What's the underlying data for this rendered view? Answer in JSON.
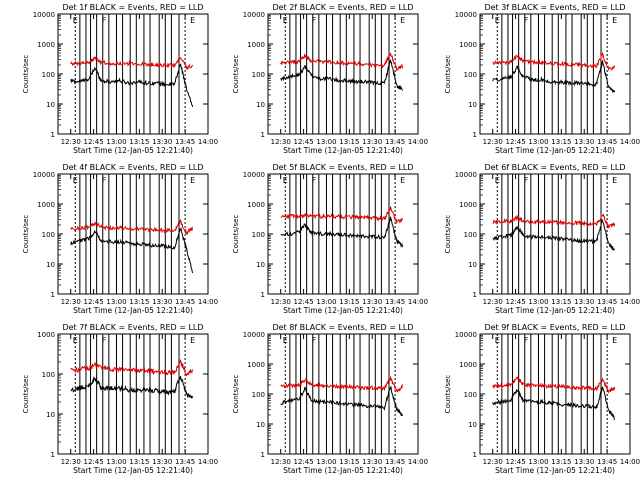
{
  "colors": {
    "events": "#000000",
    "lld": "#e00000",
    "frame": "#000000",
    "marker": "#000000"
  },
  "shared": {
    "ylabel": "Counts/sec",
    "xlabel": "Start Time (12-Jan-05 12:21:40)",
    "x_ticks": [
      "12:30",
      "12:45",
      "13:00",
      "13:15",
      "13:30",
      "13:45",
      "14:00"
    ],
    "y_ticks": [
      "1",
      "10",
      "100",
      "1000",
      "10000"
    ]
  },
  "chart_data": [
    {
      "type": "line",
      "title": "Det 1f BLACK = Events, RED = LLD",
      "xlabel": "Start Time (12-Jan-05 12:21:40)",
      "ylabel": "Counts/sec",
      "x_range": [
        "12:21:40",
        "14:00:00"
      ],
      "ylim": [
        1,
        10000
      ],
      "y_scale": "log",
      "grid": false,
      "x": [
        "12:30",
        "12:36",
        "12:42",
        "12:46",
        "12:50",
        "12:56",
        "13:02",
        "13:08",
        "13:14",
        "13:20",
        "13:26",
        "13:32",
        "13:38",
        "13:42",
        "13:46",
        "13:50"
      ],
      "series": [
        {
          "name": "BLACK = Events",
          "values": [
            60,
            55,
            70,
            160,
            60,
            55,
            60,
            50,
            55,
            50,
            50,
            45,
            45,
            220,
            30,
            8
          ]
        },
        {
          "name": "RED = LLD",
          "values": [
            220,
            230,
            240,
            350,
            240,
            230,
            230,
            220,
            220,
            210,
            200,
            200,
            190,
            380,
            160,
            200
          ]
        }
      ],
      "markers": {
        "letters": [
          "E",
          "F",
          "E"
        ],
        "line_count": 16
      }
    },
    {
      "type": "line",
      "title": "Det 2f BLACK = Events, RED = LLD",
      "xlabel": "Start Time (12-Jan-05 12:21:40)",
      "ylabel": "Counts/sec",
      "x_range": [
        "12:21:40",
        "14:00:00"
      ],
      "ylim": [
        1,
        10000
      ],
      "y_scale": "log",
      "grid": false,
      "x": [
        "12:30",
        "12:36",
        "12:42",
        "12:46",
        "12:50",
        "12:56",
        "13:02",
        "13:08",
        "13:14",
        "13:20",
        "13:26",
        "13:32",
        "13:38",
        "13:42",
        "13:46",
        "13:50"
      ],
      "series": [
        {
          "name": "BLACK = Events",
          "values": [
            70,
            80,
            90,
            180,
            90,
            70,
            70,
            60,
            60,
            55,
            55,
            50,
            50,
            300,
            40,
            30
          ]
        },
        {
          "name": "RED = LLD",
          "values": [
            230,
            250,
            260,
            400,
            280,
            250,
            250,
            240,
            230,
            220,
            210,
            200,
            190,
            500,
            150,
            180
          ]
        }
      ],
      "markers": {
        "letters": [
          "E",
          "F",
          "E"
        ],
        "line_count": 16
      }
    },
    {
      "type": "line",
      "title": "Det 3f BLACK = Events, RED = LLD",
      "xlabel": "Start Time (12-Jan-05 12:21:40)",
      "ylabel": "Counts/sec",
      "x_range": [
        "12:21:40",
        "14:00:00"
      ],
      "ylim": [
        1,
        10000
      ],
      "y_scale": "log",
      "grid": false,
      "x": [
        "12:30",
        "12:36",
        "12:42",
        "12:46",
        "12:50",
        "12:56",
        "13:02",
        "13:08",
        "13:14",
        "13:20",
        "13:26",
        "13:32",
        "13:38",
        "13:42",
        "13:46",
        "13:50"
      ],
      "series": [
        {
          "name": "BLACK = Events",
          "values": [
            60,
            70,
            80,
            170,
            80,
            65,
            65,
            55,
            55,
            50,
            50,
            45,
            45,
            260,
            35,
            25
          ]
        },
        {
          "name": "RED = LLD",
          "values": [
            230,
            240,
            250,
            400,
            270,
            240,
            240,
            230,
            220,
            210,
            200,
            190,
            180,
            450,
            140,
            170
          ]
        }
      ],
      "markers": {
        "letters": [
          "E",
          "F",
          "E"
        ],
        "line_count": 16
      }
    },
    {
      "type": "line",
      "title": "Det 4f BLACK = Events, RED = LLD",
      "xlabel": "Start Time (12-Jan-05 12:21:40)",
      "ylabel": "Counts/sec",
      "x_range": [
        "12:21:40",
        "14:00:00"
      ],
      "ylim": [
        1,
        10000
      ],
      "y_scale": "log",
      "grid": false,
      "x": [
        "12:30",
        "12:36",
        "12:42",
        "12:46",
        "12:50",
        "12:56",
        "13:02",
        "13:08",
        "13:14",
        "13:20",
        "13:26",
        "13:32",
        "13:38",
        "13:42",
        "13:46",
        "13:50"
      ],
      "series": [
        {
          "name": "BLACK = Events",
          "values": [
            50,
            60,
            70,
            120,
            60,
            55,
            55,
            50,
            45,
            45,
            40,
            40,
            35,
            150,
            30,
            5
          ]
        },
        {
          "name": "RED = LLD",
          "values": [
            150,
            160,
            170,
            230,
            170,
            160,
            160,
            150,
            150,
            140,
            140,
            130,
            130,
            250,
            110,
            150
          ]
        }
      ],
      "markers": {
        "letters": [
          "E",
          "F",
          "E"
        ],
        "line_count": 16
      }
    },
    {
      "type": "line",
      "title": "Det 5f BLACK = Events, RED = LLD",
      "xlabel": "Start Time (12-Jan-05 12:21:40)",
      "ylabel": "Counts/sec",
      "x_range": [
        "12:21:40",
        "14:00:00"
      ],
      "ylim": [
        1,
        10000
      ],
      "y_scale": "log",
      "grid": false,
      "x": [
        "12:30",
        "12:36",
        "12:42",
        "12:46",
        "12:50",
        "12:56",
        "13:02",
        "13:08",
        "13:14",
        "13:20",
        "13:26",
        "13:32",
        "13:38",
        "13:42",
        "13:46",
        "13:50"
      ],
      "series": [
        {
          "name": "BLACK = Events",
          "values": [
            90,
            100,
            120,
            200,
            110,
            100,
            100,
            95,
            90,
            85,
            85,
            80,
            75,
            350,
            60,
            40
          ]
        },
        {
          "name": "RED = LLD",
          "values": [
            380,
            390,
            400,
            420,
            400,
            390,
            390,
            380,
            370,
            360,
            350,
            340,
            330,
            700,
            250,
            300
          ]
        }
      ],
      "markers": {
        "letters": [
          "E",
          "F",
          "E"
        ],
        "line_count": 16
      }
    },
    {
      "type": "line",
      "title": "Det 6f BLACK = Events, RED = LLD",
      "xlabel": "Start Time (12-Jan-05 12:21:40)",
      "ylabel": "Counts/sec",
      "x_range": [
        "12:21:40",
        "14:00:00"
      ],
      "ylim": [
        1,
        10000
      ],
      "y_scale": "log",
      "grid": false,
      "x": [
        "12:30",
        "12:36",
        "12:42",
        "12:46",
        "12:50",
        "12:56",
        "13:02",
        "13:08",
        "13:14",
        "13:20",
        "13:26",
        "13:32",
        "13:38",
        "13:42",
        "13:46",
        "13:50"
      ],
      "series": [
        {
          "name": "BLACK = Events",
          "values": [
            70,
            80,
            90,
            180,
            90,
            80,
            80,
            75,
            70,
            65,
            60,
            60,
            55,
            300,
            45,
            30
          ]
        },
        {
          "name": "RED = LLD",
          "values": [
            250,
            260,
            270,
            350,
            280,
            260,
            260,
            250,
            250,
            240,
            230,
            220,
            210,
            450,
            170,
            220
          ]
        }
      ],
      "markers": {
        "letters": [
          "E",
          "F",
          "E"
        ],
        "line_count": 16
      }
    },
    {
      "type": "line",
      "title": "Det 7f BLACK = Events, RED = LLD",
      "xlabel": "Start Time (12-Jan-05 12:21:40)",
      "ylabel": "Counts/sec",
      "x_range": [
        "12:21:40",
        "14:00:00"
      ],
      "ylim": [
        1,
        1000
      ],
      "y_scale": "log",
      "grid": false,
      "x": [
        "12:30",
        "12:36",
        "12:42",
        "12:46",
        "12:50",
        "12:56",
        "13:02",
        "13:08",
        "13:14",
        "13:20",
        "13:26",
        "13:32",
        "13:38",
        "13:42",
        "13:46",
        "13:50"
      ],
      "series": [
        {
          "name": "BLACK = Events",
          "values": [
            40,
            45,
            50,
            80,
            45,
            45,
            45,
            40,
            40,
            40,
            38,
            35,
            35,
            90,
            30,
            25
          ]
        },
        {
          "name": "RED = LLD",
          "values": [
            120,
            130,
            140,
            180,
            140,
            130,
            130,
            125,
            120,
            120,
            115,
            110,
            110,
            200,
            100,
            130
          ]
        }
      ],
      "markers": {
        "letters": [
          "E",
          "F",
          "E"
        ],
        "line_count": 16
      }
    },
    {
      "type": "line",
      "title": "Det 8f BLACK = Events, RED = LLD",
      "xlabel": "Start Time (12-Jan-05 12:21:40)",
      "ylabel": "Counts/sec",
      "x_range": [
        "12:21:40",
        "14:00:00"
      ],
      "ylim": [
        1,
        10000
      ],
      "y_scale": "log",
      "grid": false,
      "x": [
        "12:30",
        "12:36",
        "12:42",
        "12:46",
        "12:50",
        "12:56",
        "13:02",
        "13:08",
        "13:14",
        "13:20",
        "13:26",
        "13:32",
        "13:38",
        "13:42",
        "13:46",
        "13:50"
      ],
      "series": [
        {
          "name": "BLACK = Events",
          "values": [
            50,
            60,
            70,
            150,
            60,
            55,
            55,
            50,
            45,
            45,
            40,
            40,
            35,
            180,
            30,
            20
          ]
        },
        {
          "name": "RED = LLD",
          "values": [
            180,
            190,
            200,
            300,
            210,
            190,
            190,
            180,
            180,
            170,
            160,
            160,
            150,
            350,
            120,
            180
          ]
        }
      ],
      "markers": {
        "letters": [
          "E",
          "F",
          "E"
        ],
        "line_count": 16
      }
    },
    {
      "type": "line",
      "title": "Det 9f BLACK = Events, RED = LLD",
      "xlabel": "Start Time (12-Jan-05 12:21:40)",
      "ylabel": "Counts/sec",
      "x_range": [
        "12:21:40",
        "14:00:00"
      ],
      "ylim": [
        1,
        10000
      ],
      "y_scale": "log",
      "grid": false,
      "x": [
        "12:30",
        "12:36",
        "12:42",
        "12:46",
        "12:50",
        "12:56",
        "13:02",
        "13:08",
        "13:14",
        "13:20",
        "13:26",
        "13:32",
        "13:38",
        "13:42",
        "13:46",
        "13:50"
      ],
      "series": [
        {
          "name": "BLACK = Events",
          "values": [
            50,
            55,
            65,
            140,
            60,
            55,
            55,
            50,
            45,
            45,
            40,
            40,
            35,
            170,
            30,
            15
          ]
        },
        {
          "name": "RED = LLD",
          "values": [
            180,
            190,
            200,
            350,
            210,
            190,
            190,
            180,
            180,
            170,
            160,
            160,
            150,
            300,
            120,
            170
          ]
        }
      ],
      "markers": {
        "letters": [
          "E",
          "F",
          "E"
        ],
        "line_count": 16
      }
    }
  ]
}
